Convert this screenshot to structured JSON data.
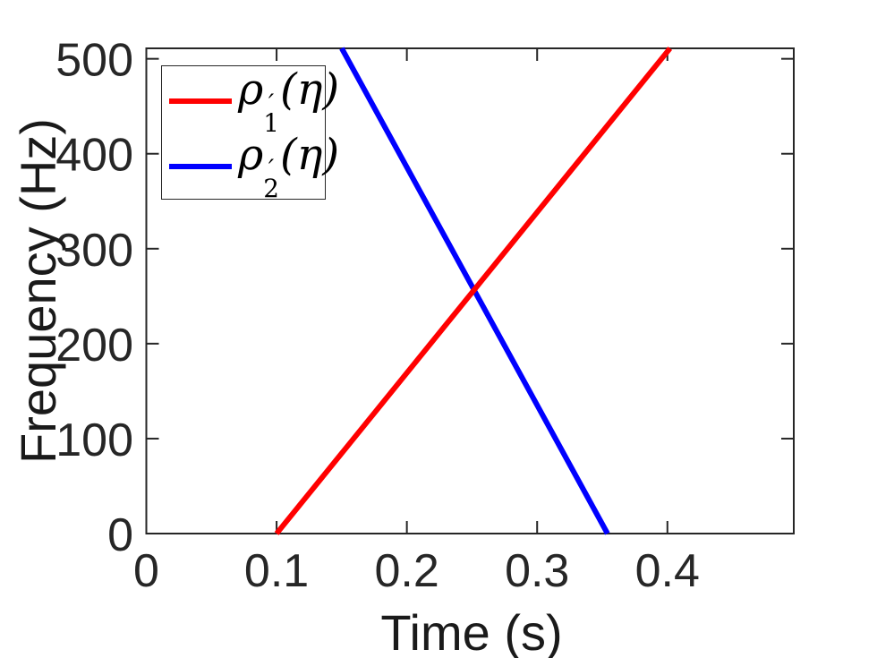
{
  "figure": {
    "background": "#ffffff",
    "text_color": "#262626"
  },
  "chart_data": {
    "type": "line",
    "title": "",
    "xlabel": "Time (s)",
    "ylabel": "Frequency (Hz)",
    "xlim": [
      0,
      0.497
    ],
    "ylim": [
      0,
      511
    ],
    "grid": false,
    "legend_position": "top-left",
    "axis_color": "#262626",
    "x_ticks": {
      "values": [
        0,
        0.1,
        0.2,
        0.3,
        0.4
      ],
      "labels": [
        "0",
        "0.1",
        "0.2",
        "0.3",
        "0.4"
      ]
    },
    "y_ticks": {
      "values": [
        0,
        100,
        200,
        300,
        400,
        500
      ],
      "labels": [
        "0",
        "100",
        "200",
        "300",
        "400",
        "500"
      ]
    },
    "series": [
      {
        "name": "rho1-prime",
        "label_plain": "ρ′1(η)",
        "color": "#ff0000",
        "points": [
          [
            0.1,
            0
          ],
          [
            0.402,
            511
          ]
        ]
      },
      {
        "name": "rho2-prime",
        "label_plain": "ρ′2(η)",
        "color": "#0000ff",
        "points": [
          [
            0.15,
            511
          ],
          [
            0.354,
            0
          ]
        ]
      }
    ]
  },
  "legend": {
    "items": [
      {
        "rho": "ρ",
        "prime": "′",
        "sub": "1",
        "arg": "(η)",
        "color": "#ff0000"
      },
      {
        "rho": "ρ",
        "prime": "′",
        "sub": "2",
        "arg": "(η)",
        "color": "#0000ff"
      }
    ]
  }
}
